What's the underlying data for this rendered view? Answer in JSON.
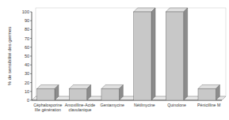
{
  "chart_data": {
    "type": "bar",
    "y_label": "% de sensibilité des germes",
    "categories": [
      "Céphalosporine IIIe génération",
      "Amoxilline-Acide clavulanique",
      "Gentamycine",
      "Nétilmycine",
      "Quinolone",
      "Pénicilline M"
    ],
    "values": [
      13,
      13,
      13,
      100,
      100,
      13
    ],
    "color": "#c8c8c8",
    "ylim": [
      0,
      100
    ],
    "yticks": [
      0,
      10,
      20,
      30,
      40,
      50,
      60,
      70,
      80,
      90,
      100
    ],
    "grid": false
  }
}
